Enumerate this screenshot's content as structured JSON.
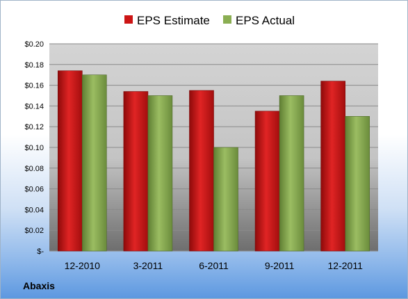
{
  "company": "Abaxis",
  "colors": {
    "estimate": "#cc1414",
    "actual": "#8aae52"
  },
  "chart_data": {
    "type": "bar",
    "categories": [
      "12-2010",
      "3-2011",
      "6-2011",
      "9-2011",
      "12-2011"
    ],
    "series": [
      {
        "name": "EPS Estimate",
        "values": [
          0.174,
          0.154,
          0.155,
          0.135,
          0.164
        ]
      },
      {
        "name": "EPS Actual",
        "values": [
          0.17,
          0.15,
          0.1,
          0.15,
          0.13
        ]
      }
    ],
    "yticks": [
      "$-",
      "$0.02",
      "$0.04",
      "$0.06",
      "$0.08",
      "$0.10",
      "$0.12",
      "$0.14",
      "$0.16",
      "$0.18",
      "$0.20"
    ],
    "ylim": [
      0,
      0.2
    ],
    "grid": true,
    "legend_position": "top"
  }
}
